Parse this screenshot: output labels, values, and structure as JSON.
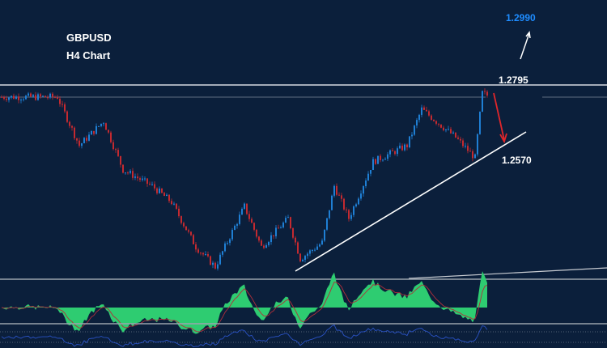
{
  "chart_data": {
    "type": "candlestick",
    "title": "GBPUSD",
    "subtitle": "H4 Chart",
    "price_range": [
      1.22,
      1.299
    ],
    "pivots": [
      {
        "i": 0,
        "p": 1.2758
      },
      {
        "i": 23,
        "p": 1.2758
      },
      {
        "i": 32,
        "p": 1.2608
      },
      {
        "i": 42,
        "p": 1.2683
      },
      {
        "i": 50,
        "p": 1.2533
      },
      {
        "i": 62,
        "p": 1.2483
      },
      {
        "i": 70,
        "p": 1.2433
      },
      {
        "i": 80,
        "p": 1.2295
      },
      {
        "i": 88,
        "p": 1.2233
      },
      {
        "i": 100,
        "p": 1.242
      },
      {
        "i": 107,
        "p": 1.2295
      },
      {
        "i": 118,
        "p": 1.2383
      },
      {
        "i": 123,
        "p": 1.2258
      },
      {
        "i": 132,
        "p": 1.2308
      },
      {
        "i": 137,
        "p": 1.2483
      },
      {
        "i": 143,
        "p": 1.2383
      },
      {
        "i": 153,
        "p": 1.2558
      },
      {
        "i": 167,
        "p": 1.2608
      },
      {
        "i": 173,
        "p": 1.272
      },
      {
        "i": 187,
        "p": 1.2633
      },
      {
        "i": 195,
        "p": 1.257
      },
      {
        "i": 198,
        "p": 1.277
      },
      {
        "i": 200,
        "p": 1.2763
      }
    ],
    "levels": [
      {
        "label": "1.2795",
        "price": 1.2795,
        "kind": "resistance"
      },
      {
        "label": "1.2570",
        "price": 1.257,
        "kind": "target"
      },
      {
        "label": "1.2990",
        "price": 1.299,
        "kind": "upside-target"
      }
    ],
    "colors": {
      "background": "#0b1f3b",
      "up": "#1f7fd4",
      "down": "#c42a30",
      "oscillator": "#2ecc71",
      "signal": "#b0303a",
      "rsi": "#2a52c4",
      "up_label": "#1e8cff",
      "down_arrow": "#e0262b"
    }
  }
}
